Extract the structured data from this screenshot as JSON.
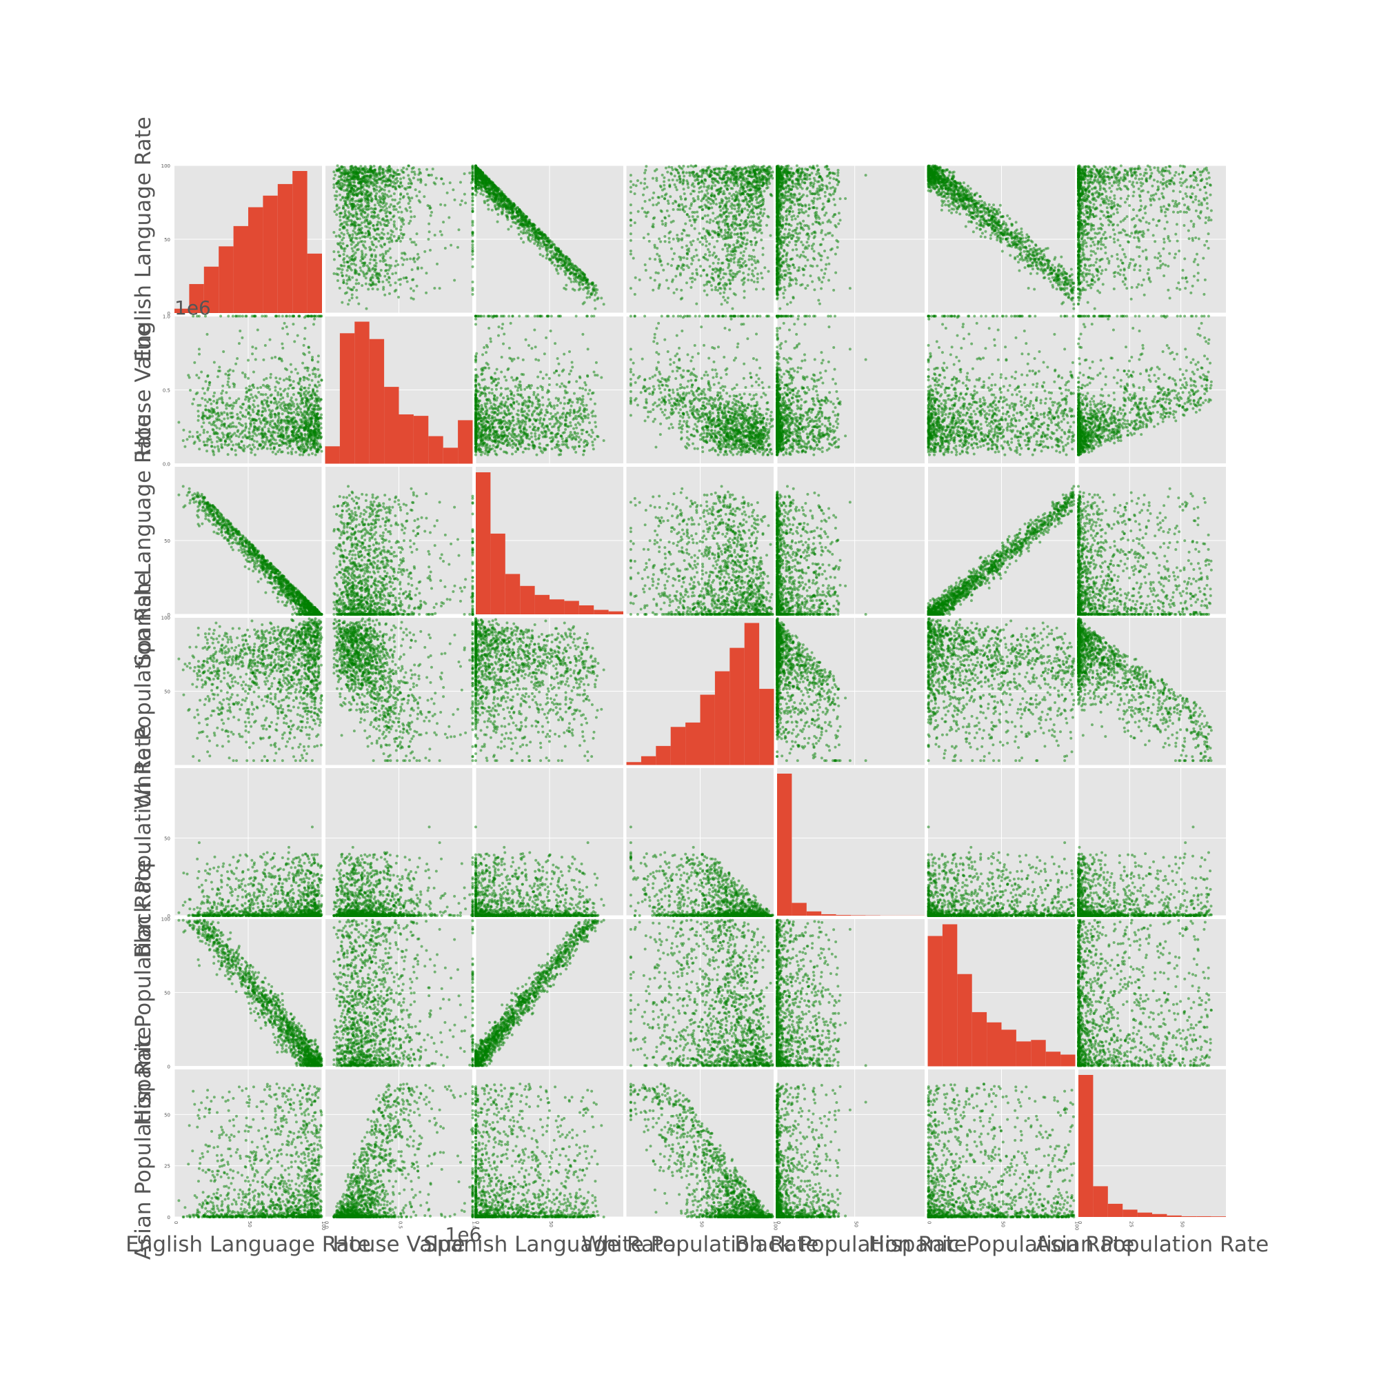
{
  "chart_data": {
    "type": "scatter_matrix",
    "variables": [
      "English Language Rate",
      "House Value",
      "Spanish Language Rate",
      "White Population Rate",
      "Black Population Rate",
      "Hispanic Population Rate",
      "Asian Population Rate"
    ],
    "ranges": [
      [
        0,
        100
      ],
      [
        0,
        1000000
      ],
      [
        0,
        100
      ],
      [
        0,
        100
      ],
      [
        0,
        95
      ],
      [
        0,
        100
      ],
      [
        0,
        72
      ]
    ],
    "ticks": [
      [
        0,
        50,
        100
      ],
      [
        0,
        500000,
        1000000
      ],
      [
        0,
        50
      ],
      [
        50,
        100
      ],
      [
        0,
        50
      ],
      [
        0,
        50,
        100
      ],
      [
        0,
        25,
        50
      ]
    ],
    "tick_labels": {
      "English Language Rate": [
        "0",
        "50",
        "100"
      ],
      "House Value": [
        "0.0",
        "0.5",
        "1.0"
      ],
      "Spanish Language Rate": [
        "0",
        "50"
      ],
      "White Population Rate": [
        "50",
        "100"
      ],
      "Black Population Rate": [
        "0",
        "50"
      ],
      "Hispanic Population Rate": [
        "0",
        "50",
        "100"
      ],
      "Asian Population Rate": [
        "0",
        "25",
        "50"
      ]
    },
    "offset_label": "1e6",
    "diagonal": "histogram",
    "histograms": [
      [
        3,
        20,
        32,
        46,
        60,
        73,
        81,
        89,
        98,
        41
      ],
      [
        12,
        90,
        98,
        86,
        53,
        34,
        33,
        19,
        11,
        30
      ],
      [
        95,
        54,
        27,
        19,
        13,
        10,
        9,
        6,
        3,
        2
      ],
      [
        2,
        6,
        13,
        26,
        29,
        48,
        64,
        80,
        97,
        52
      ],
      [
        100,
        9,
        3,
        1,
        0.5,
        0.3,
        0.2,
        0.1,
        0.1,
        0.1
      ],
      [
        89,
        97,
        63,
        37,
        30,
        25,
        17,
        18,
        10,
        8
      ],
      [
        97,
        21,
        9,
        5,
        3,
        2,
        1,
        0.5,
        0.5,
        0.4
      ]
    ],
    "point_count": 1300,
    "grid": true,
    "colors": {
      "scatter": "#008000",
      "histogram": "#E24A33",
      "panel_background": "#E5E5E5",
      "grid": "#FFFFFF",
      "text": "#555555"
    }
  }
}
